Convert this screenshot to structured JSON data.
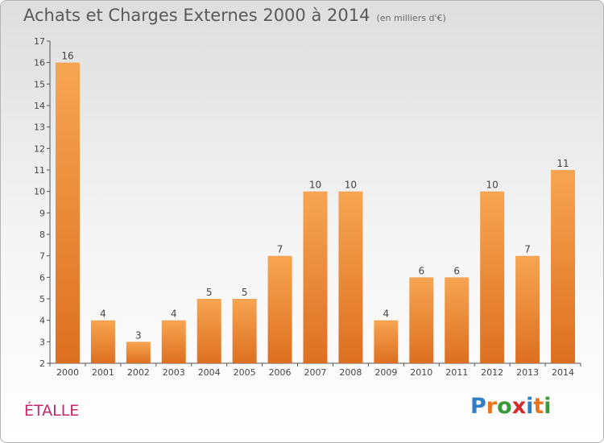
{
  "title": "Achats et Charges Externes 2000 à 2014",
  "unit": "(en milliers d'€)",
  "place": "ÉTALLE",
  "logo": {
    "text": "Proxiti",
    "letters": [
      "P",
      "r",
      "o",
      "x",
      "i",
      "t",
      "i"
    ],
    "colors": [
      "#2f7fc8",
      "#e8741e",
      "#3a9a3a",
      "#d42a2a",
      "#2f7fc8",
      "#e8741e",
      "#3a9a3a"
    ]
  },
  "colors": {
    "bar_light": "#f7a552",
    "bar_dark": "#dd7020",
    "title": "#5a5a5a",
    "place": "#c2286a"
  },
  "chart_data": {
    "type": "bar",
    "categories": [
      "2000",
      "2001",
      "2002",
      "2003",
      "2004",
      "2005",
      "2006",
      "2007",
      "2008",
      "2009",
      "2010",
      "2011",
      "2012",
      "2013",
      "2014"
    ],
    "values": [
      16,
      4,
      3,
      4,
      5,
      5,
      7,
      10,
      10,
      4,
      6,
      6,
      10,
      7,
      11
    ],
    "title": "Achats et Charges Externes 2000 à 2014",
    "xlabel": "",
    "ylabel": "",
    "ylim": [
      2,
      17
    ],
    "yticks": [
      2,
      3,
      4,
      5,
      6,
      7,
      8,
      9,
      10,
      11,
      12,
      13,
      14,
      15,
      16,
      17
    ],
    "grid": false,
    "data_labels": true
  }
}
